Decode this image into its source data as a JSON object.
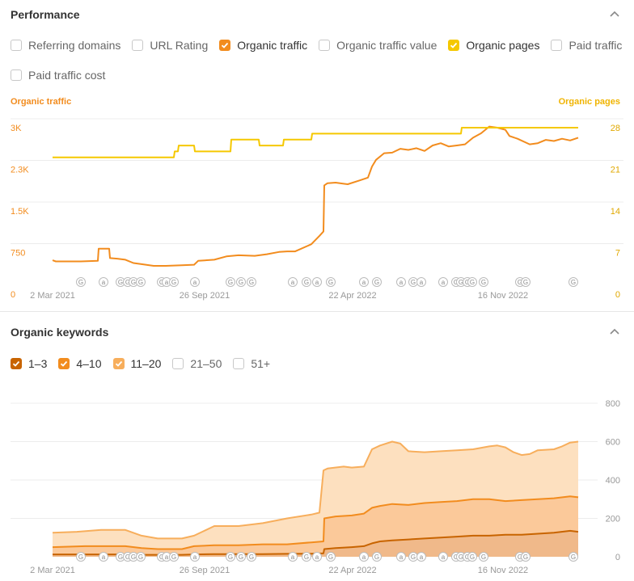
{
  "performance": {
    "title": "Performance",
    "checkboxes_row1": [
      {
        "label": "Referring domains",
        "checked": false,
        "color": ""
      },
      {
        "label": "URL Rating",
        "checked": false,
        "color": ""
      },
      {
        "label": "Organic traffic",
        "checked": true,
        "color": "#f28c1e"
      },
      {
        "label": "Organic traffic value",
        "checked": false,
        "color": ""
      },
      {
        "label": "Organic pages",
        "checked": true,
        "color": "#f5c800"
      },
      {
        "label": "Paid traffic",
        "checked": false,
        "color": ""
      }
    ],
    "checkboxes_row2": [
      {
        "label": "Paid traffic cost",
        "checked": false,
        "color": ""
      }
    ],
    "left_axis_title": "Organic traffic",
    "right_axis_title": "Organic pages",
    "left_axis_color": "#f28c1e",
    "right_axis_color": "#f0b400"
  },
  "keywords": {
    "title": "Organic keywords",
    "checkboxes": [
      {
        "label": "1–3",
        "checked": true,
        "color": "#c86400"
      },
      {
        "label": "4–10",
        "checked": true,
        "color": "#f28c1e"
      },
      {
        "label": "11–20",
        "checked": true,
        "color": "#f7ae5c"
      },
      {
        "label": "21–50",
        "checked": false,
        "color": ""
      },
      {
        "label": "51+",
        "checked": false,
        "color": ""
      }
    ]
  },
  "chart_data": [
    {
      "type": "line",
      "x_ticks": [
        "2 Mar 2021",
        "26 Sep 2021",
        "22 Apr 2022",
        "16 Nov 2022"
      ],
      "y_left_ticks": [
        "0",
        "750",
        "1.5K",
        "2.3K",
        "3K"
      ],
      "y_right_ticks": [
        "0",
        "7",
        "14",
        "21",
        "28"
      ],
      "ylim_left": [
        0,
        3000
      ],
      "ylim_right": [
        0,
        28
      ],
      "grid": true,
      "series": [
        {
          "name": "Organic traffic",
          "axis": "left",
          "color": "#f28c1e",
          "points": [
            [
              0,
              610
            ],
            [
              4,
              590
            ],
            [
              20,
              590
            ],
            [
              35,
              590
            ],
            [
              56,
              600
            ],
            [
              57,
              820
            ],
            [
              70,
              820
            ],
            [
              71,
              650
            ],
            [
              80,
              640
            ],
            [
              90,
              620
            ],
            [
              100,
              560
            ],
            [
              110,
              540
            ],
            [
              125,
              510
            ],
            [
              140,
              510
            ],
            [
              160,
              520
            ],
            [
              175,
              530
            ],
            [
              180,
              600
            ],
            [
              200,
              620
            ],
            [
              215,
              680
            ],
            [
              230,
              700
            ],
            [
              250,
              690
            ],
            [
              265,
              720
            ],
            [
              280,
              760
            ],
            [
              290,
              770
            ],
            [
              300,
              770
            ],
            [
              320,
              900
            ],
            [
              330,
              1050
            ],
            [
              335,
              1130
            ],
            [
              336,
              1960
            ],
            [
              340,
              2000
            ],
            [
              350,
              2010
            ],
            [
              360,
              1990
            ],
            [
              365,
              1980
            ],
            [
              380,
              2050
            ],
            [
              390,
              2100
            ],
            [
              395,
              2300
            ],
            [
              400,
              2420
            ],
            [
              410,
              2540
            ],
            [
              420,
              2550
            ],
            [
              430,
              2620
            ],
            [
              440,
              2600
            ],
            [
              450,
              2630
            ],
            [
              460,
              2580
            ],
            [
              470,
              2680
            ],
            [
              480,
              2720
            ],
            [
              490,
              2660
            ],
            [
              500,
              2680
            ],
            [
              510,
              2700
            ],
            [
              520,
              2820
            ],
            [
              530,
              2900
            ],
            [
              540,
              3020
            ],
            [
              550,
              3000
            ],
            [
              560,
              2960
            ],
            [
              565,
              2850
            ],
            [
              575,
              2800
            ],
            [
              590,
              2700
            ],
            [
              600,
              2720
            ],
            [
              610,
              2780
            ],
            [
              620,
              2760
            ],
            [
              630,
              2800
            ],
            [
              640,
              2770
            ],
            [
              650,
              2820
            ]
          ]
        },
        {
          "name": "Organic pages",
          "axis": "right",
          "color": "#f5c800",
          "points": [
            [
              0,
              23
            ],
            [
              150,
              23
            ],
            [
              151,
              24
            ],
            [
              155,
              24
            ],
            [
              156,
              25
            ],
            [
              175,
              25
            ],
            [
              176,
              24
            ],
            [
              220,
              24
            ],
            [
              221,
              26
            ],
            [
              255,
              26
            ],
            [
              256,
              25
            ],
            [
              285,
              25
            ],
            [
              286,
              26
            ],
            [
              320,
              26
            ],
            [
              321,
              27
            ],
            [
              505,
              27
            ],
            [
              506,
              28
            ],
            [
              650,
              28
            ]
          ]
        }
      ],
      "annotation_markers": [
        "G",
        "a",
        "G",
        "G",
        "G",
        "G",
        "G",
        "a",
        "G",
        "a",
        "G",
        "G",
        "G",
        "a",
        "G",
        "a",
        "G",
        "a",
        "G",
        "a",
        "G",
        "a",
        "a",
        "G",
        "G",
        "G",
        "G",
        "G",
        "G",
        "G",
        "G"
      ]
    },
    {
      "type": "area",
      "x_ticks": [
        "2 Mar 2021",
        "26 Sep 2021",
        "22 Apr 2022",
        "16 Nov 2022"
      ],
      "y_right_ticks": [
        "0",
        "200",
        "400",
        "600",
        "800"
      ],
      "ylim": [
        0,
        800
      ],
      "grid": true,
      "stacked": true,
      "series": [
        {
          "name": "11–20",
          "color": "#f7ae5c",
          "fill": "#fde0bf",
          "points": [
            [
              0,
              125
            ],
            [
              30,
              130
            ],
            [
              60,
              140
            ],
            [
              90,
              140
            ],
            [
              110,
              110
            ],
            [
              130,
              95
            ],
            [
              160,
              95
            ],
            [
              175,
              110
            ],
            [
              185,
              130
            ],
            [
              200,
              160
            ],
            [
              230,
              160
            ],
            [
              260,
              175
            ],
            [
              290,
              200
            ],
            [
              320,
              220
            ],
            [
              330,
              230
            ],
            [
              335,
              450
            ],
            [
              340,
              460
            ],
            [
              360,
              470
            ],
            [
              370,
              465
            ],
            [
              385,
              470
            ],
            [
              395,
              560
            ],
            [
              405,
              580
            ],
            [
              420,
              600
            ],
            [
              430,
              590
            ],
            [
              440,
              550
            ],
            [
              460,
              545
            ],
            [
              480,
              550
            ],
            [
              500,
              555
            ],
            [
              520,
              560
            ],
            [
              540,
              575
            ],
            [
              550,
              580
            ],
            [
              560,
              570
            ],
            [
              570,
              545
            ],
            [
              580,
              530
            ],
            [
              590,
              535
            ],
            [
              600,
              555
            ],
            [
              620,
              560
            ],
            [
              630,
              575
            ],
            [
              640,
              595
            ],
            [
              650,
              600
            ]
          ]
        },
        {
          "name": "4–10",
          "color": "#f28c1e",
          "fill": "#fbc99a",
          "points": [
            [
              0,
              50
            ],
            [
              40,
              55
            ],
            [
              60,
              55
            ],
            [
              90,
              55
            ],
            [
              110,
              45
            ],
            [
              130,
              40
            ],
            [
              160,
              40
            ],
            [
              175,
              55
            ],
            [
              200,
              60
            ],
            [
              230,
              60
            ],
            [
              260,
              65
            ],
            [
              290,
              65
            ],
            [
              320,
              75
            ],
            [
              335,
              80
            ],
            [
              336,
              200
            ],
            [
              350,
              210
            ],
            [
              370,
              215
            ],
            [
              385,
              225
            ],
            [
              395,
              255
            ],
            [
              405,
              265
            ],
            [
              420,
              275
            ],
            [
              440,
              270
            ],
            [
              460,
              280
            ],
            [
              480,
              285
            ],
            [
              500,
              290
            ],
            [
              520,
              300
            ],
            [
              540,
              300
            ],
            [
              560,
              290
            ],
            [
              580,
              295
            ],
            [
              600,
              300
            ],
            [
              620,
              305
            ],
            [
              640,
              315
            ],
            [
              650,
              310
            ]
          ]
        },
        {
          "name": "1–3",
          "color": "#c86400",
          "fill": "#f0b98a",
          "points": [
            [
              0,
              12
            ],
            [
              30,
              12
            ],
            [
              60,
              12
            ],
            [
              90,
              12
            ],
            [
              110,
              10
            ],
            [
              130,
              10
            ],
            [
              160,
              10
            ],
            [
              175,
              12
            ],
            [
              200,
              14
            ],
            [
              230,
              14
            ],
            [
              260,
              14
            ],
            [
              290,
              15
            ],
            [
              320,
              16
            ],
            [
              335,
              18
            ],
            [
              336,
              40
            ],
            [
              350,
              45
            ],
            [
              370,
              50
            ],
            [
              385,
              55
            ],
            [
              395,
              70
            ],
            [
              405,
              80
            ],
            [
              420,
              85
            ],
            [
              440,
              90
            ],
            [
              460,
              95
            ],
            [
              480,
              100
            ],
            [
              500,
              105
            ],
            [
              520,
              110
            ],
            [
              540,
              110
            ],
            [
              560,
              115
            ],
            [
              580,
              115
            ],
            [
              600,
              120
            ],
            [
              620,
              125
            ],
            [
              640,
              135
            ],
            [
              650,
              130
            ]
          ]
        }
      ],
      "annotation_markers": [
        "G",
        "a",
        "G",
        "G",
        "G",
        "G",
        "G",
        "a",
        "G",
        "a",
        "G",
        "G",
        "G",
        "a",
        "G",
        "a",
        "G",
        "a",
        "G",
        "a",
        "G",
        "a",
        "a",
        "G",
        "G",
        "G",
        "G",
        "G",
        "G",
        "G",
        "G"
      ]
    }
  ]
}
